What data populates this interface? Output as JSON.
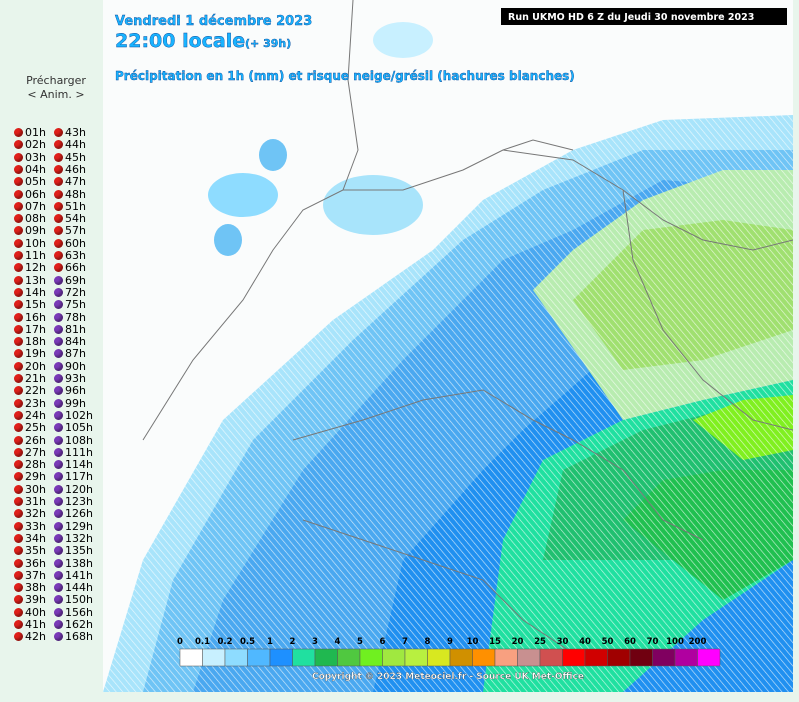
{
  "sidebar": {
    "preload": "Précharger",
    "anim": "< Anim. >",
    "hours_left": [
      {
        "label": "01h",
        "dot": "#e0201a"
      },
      {
        "label": "02h",
        "dot": "#e0201a"
      },
      {
        "label": "03h",
        "dot": "#e0201a"
      },
      {
        "label": "04h",
        "dot": "#e0201a"
      },
      {
        "label": "05h",
        "dot": "#e0201a"
      },
      {
        "label": "06h",
        "dot": "#e0201a"
      },
      {
        "label": "07h",
        "dot": "#e0201a"
      },
      {
        "label": "08h",
        "dot": "#e0201a"
      },
      {
        "label": "09h",
        "dot": "#e0201a"
      },
      {
        "label": "10h",
        "dot": "#e0201a"
      },
      {
        "label": "11h",
        "dot": "#e0201a"
      },
      {
        "label": "12h",
        "dot": "#e0201a"
      },
      {
        "label": "13h",
        "dot": "#e0201a"
      },
      {
        "label": "14h",
        "dot": "#e0201a"
      },
      {
        "label": "15h",
        "dot": "#e0201a"
      },
      {
        "label": "16h",
        "dot": "#e0201a"
      },
      {
        "label": "17h",
        "dot": "#e0201a"
      },
      {
        "label": "18h",
        "dot": "#e0201a"
      },
      {
        "label": "19h",
        "dot": "#e0201a"
      },
      {
        "label": "20h",
        "dot": "#e0201a"
      },
      {
        "label": "21h",
        "dot": "#e0201a"
      },
      {
        "label": "22h",
        "dot": "#e0201a"
      },
      {
        "label": "23h",
        "dot": "#e0201a"
      },
      {
        "label": "24h",
        "dot": "#e0201a"
      },
      {
        "label": "25h",
        "dot": "#e0201a"
      },
      {
        "label": "26h",
        "dot": "#e0201a"
      },
      {
        "label": "27h",
        "dot": "#e0201a"
      },
      {
        "label": "28h",
        "dot": "#e0201a"
      },
      {
        "label": "29h",
        "dot": "#e0201a"
      },
      {
        "label": "30h",
        "dot": "#e0201a"
      },
      {
        "label": "31h",
        "dot": "#e0201a"
      },
      {
        "label": "32h",
        "dot": "#e0201a"
      },
      {
        "label": "33h",
        "dot": "#e0201a"
      },
      {
        "label": "34h",
        "dot": "#e0201a"
      },
      {
        "label": "35h",
        "dot": "#e0201a"
      },
      {
        "label": "36h",
        "dot": "#e0201a"
      },
      {
        "label": "37h",
        "dot": "#e0201a"
      },
      {
        "label": "38h",
        "dot": "#e0201a"
      },
      {
        "label": "39h",
        "dot": "#e0201a"
      },
      {
        "label": "40h",
        "dot": "#e0201a"
      },
      {
        "label": "41h",
        "dot": "#e0201a"
      },
      {
        "label": "42h",
        "dot": "#e0201a"
      }
    ],
    "hours_right": [
      {
        "label": "43h",
        "dot": "#e0201a"
      },
      {
        "label": "44h",
        "dot": "#e0201a"
      },
      {
        "label": "45h",
        "dot": "#e0201a"
      },
      {
        "label": "46h",
        "dot": "#e0201a"
      },
      {
        "label": "47h",
        "dot": "#e0201a"
      },
      {
        "label": "48h",
        "dot": "#e0201a"
      },
      {
        "label": "51h",
        "dot": "#e0201a"
      },
      {
        "label": "54h",
        "dot": "#e0201a"
      },
      {
        "label": "57h",
        "dot": "#e0201a"
      },
      {
        "label": "60h",
        "dot": "#e0201a"
      },
      {
        "label": "63h",
        "dot": "#e0201a"
      },
      {
        "label": "66h",
        "dot": "#e0201a"
      },
      {
        "label": "69h",
        "dot": "#7a3ab8"
      },
      {
        "label": "72h",
        "dot": "#7a3ab8"
      },
      {
        "label": "75h",
        "dot": "#7a3ab8"
      },
      {
        "label": "78h",
        "dot": "#7a3ab8"
      },
      {
        "label": "81h",
        "dot": "#7a3ab8"
      },
      {
        "label": "84h",
        "dot": "#7a3ab8"
      },
      {
        "label": "87h",
        "dot": "#7a3ab8"
      },
      {
        "label": "90h",
        "dot": "#7a3ab8"
      },
      {
        "label": "93h",
        "dot": "#7a3ab8"
      },
      {
        "label": "96h",
        "dot": "#7a3ab8"
      },
      {
        "label": "99h",
        "dot": "#7a3ab8"
      },
      {
        "label": "102h",
        "dot": "#7a3ab8"
      },
      {
        "label": "105h",
        "dot": "#7a3ab8"
      },
      {
        "label": "108h",
        "dot": "#7a3ab8"
      },
      {
        "label": "111h",
        "dot": "#7a3ab8"
      },
      {
        "label": "114h",
        "dot": "#7a3ab8"
      },
      {
        "label": "117h",
        "dot": "#7a3ab8"
      },
      {
        "label": "120h",
        "dot": "#7a3ab8"
      },
      {
        "label": "123h",
        "dot": "#7a3ab8"
      },
      {
        "label": "126h",
        "dot": "#7a3ab8"
      },
      {
        "label": "129h",
        "dot": "#7a3ab8"
      },
      {
        "label": "132h",
        "dot": "#7a3ab8"
      },
      {
        "label": "135h",
        "dot": "#7a3ab8"
      },
      {
        "label": "138h",
        "dot": "#7a3ab8"
      },
      {
        "label": "141h",
        "dot": "#7a3ab8"
      },
      {
        "label": "144h",
        "dot": "#7a3ab8"
      },
      {
        "label": "150h",
        "dot": "#7a3ab8"
      },
      {
        "label": "156h",
        "dot": "#7a3ab8"
      },
      {
        "label": "162h",
        "dot": "#7a3ab8"
      },
      {
        "label": "168h",
        "dot": "#7a3ab8"
      }
    ]
  },
  "map": {
    "date": "Vendredi 1 décembre 2023",
    "time": "22:00 locale",
    "offset": "(+ 39h)",
    "description": "Précipitation en 1h (mm) et risque neige/grésil (hachures blanches)",
    "run": "Run UKMO HD 6 Z du Jeudi 30 novembre 2023",
    "scale": [
      {
        "label": "0",
        "color": "#ffffff"
      },
      {
        "label": "0.1",
        "color": "#c8f0ff"
      },
      {
        "label": "0.2",
        "color": "#8edcff"
      },
      {
        "label": "0.5",
        "color": "#50b8ff"
      },
      {
        "label": "1",
        "color": "#1e90ff"
      },
      {
        "label": "2",
        "color": "#20e0a0"
      },
      {
        "label": "3",
        "color": "#20b850"
      },
      {
        "label": "4",
        "color": "#50c840"
      },
      {
        "label": "5",
        "color": "#70f020"
      },
      {
        "label": "6",
        "color": "#a0e840"
      },
      {
        "label": "7",
        "color": "#b8f040"
      },
      {
        "label": "8",
        "color": "#d8e820"
      },
      {
        "label": "9",
        "color": "#d09000"
      },
      {
        "label": "10",
        "color": "#ff9000"
      },
      {
        "label": "15",
        "color": "#f8a080"
      },
      {
        "label": "20",
        "color": "#c89090"
      },
      {
        "label": "25",
        "color": "#d05050"
      },
      {
        "label": "30",
        "color": "#ff0000"
      },
      {
        "label": "40",
        "color": "#d00000"
      },
      {
        "label": "50",
        "color": "#a00000"
      },
      {
        "label": "60",
        "color": "#700010"
      },
      {
        "label": "70",
        "color": "#800060"
      },
      {
        "label": "100",
        "color": "#b000a0"
      },
      {
        "label": "200",
        "color": "#ff00ff"
      }
    ],
    "copyright": "Copyright © 2023 Meteociel.fr - Source UK Met-Office"
  }
}
